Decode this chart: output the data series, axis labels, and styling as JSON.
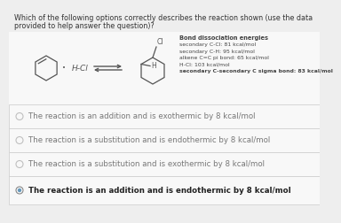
{
  "title_line1": "Which of the following options correctly describes the reaction shown (use the data",
  "title_line2": "provided to help answer the question)?",
  "bond_title": "Bond dissociation energies",
  "bond_lines": [
    "secondary C-Cl: 81 kcal/mol",
    "secondary C-H: 95 kcal/mol",
    "alkene C=C pi bond: 65 kcal/mol",
    "H-Cl: 103 kcal/mol",
    "secondary C-secondary C sigma bond: 83 kcal/mol"
  ],
  "options": [
    {
      "text": "The reaction is an addition and is exothermic by 8 kcal/mol",
      "selected": false
    },
    {
      "text": "The reaction is a substitution and is endothermic by 8 kcal/mol",
      "selected": false
    },
    {
      "text": "The reaction is a substitution and is exothermic by 8 kcal/mol",
      "selected": false
    },
    {
      "text": "The reaction is an addition and is endothermic by 8 kcal/mol",
      "selected": true
    }
  ],
  "bg_color": "#eeeeee",
  "panel_color": "#f5f5f5",
  "text_color": "#777777",
  "selected_text_color": "#222222",
  "divider_color": "#cccccc",
  "mol_color": "#555555",
  "bde_color": "#444444",
  "title_color": "#333333",
  "radio_border": "#aaaaaa",
  "radio_dot": "#6699bb"
}
